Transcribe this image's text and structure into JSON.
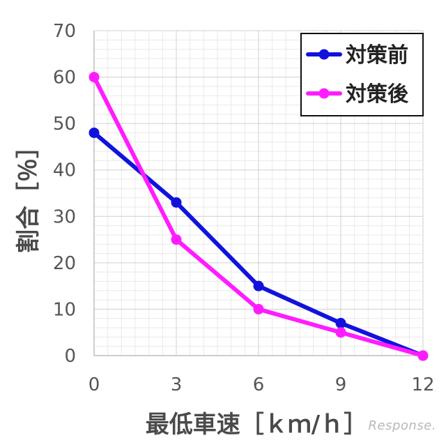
{
  "chart_data": {
    "type": "line",
    "x": [
      0,
      3,
      6,
      9,
      12
    ],
    "series": [
      {
        "name": "対策前",
        "color": "#1212dd",
        "values": [
          48,
          33,
          15,
          7,
          0
        ]
      },
      {
        "name": "対策後",
        "color": "#ff1cff",
        "values": [
          60,
          25,
          10,
          5,
          0
        ]
      }
    ],
    "xlabel": "最低車速［ｋｍ/ｈ］",
    "ylabel": "割合［％］",
    "xlim": [
      0,
      12
    ],
    "ylim": [
      0,
      70
    ],
    "x_ticks": [
      0,
      3,
      6,
      9,
      12
    ],
    "y_ticks": [
      0,
      10,
      20,
      30,
      40,
      50,
      60,
      70
    ],
    "grid": true,
    "legend_position": "top-right"
  },
  "watermark": "Response."
}
